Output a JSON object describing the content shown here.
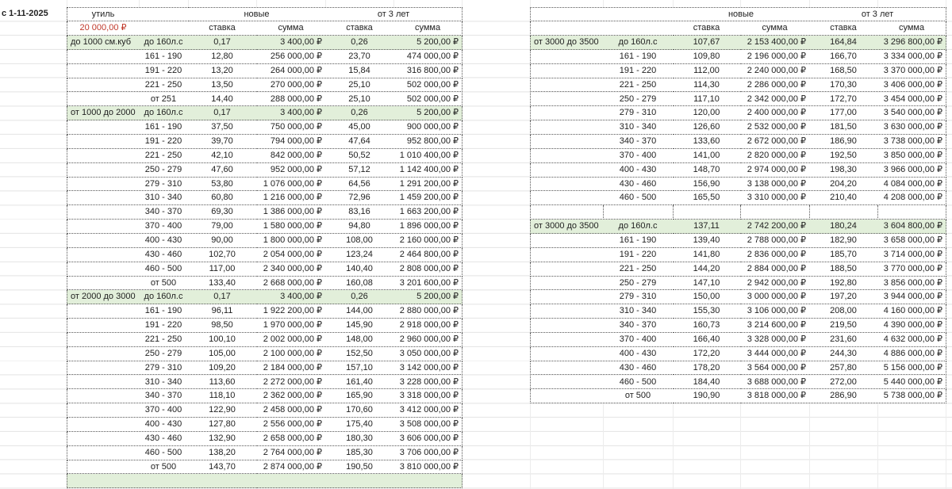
{
  "sheet": {
    "date_label": "с 1-11-2025",
    "colors": {
      "group_row": "#e2efda",
      "util_value": "#c0392b"
    }
  },
  "left": {
    "header": {
      "util_label": "утиль",
      "util_value": "20 000,00 ₽",
      "new_label": "новые",
      "old_label": "от 3 лет",
      "rate": "ставка",
      "sum": "сумма"
    },
    "groups": [
      {
        "label": "до 1000 см.куб",
        "rows": [
          [
            "до 160л.с",
            "0,17",
            "3 400,00 ₽",
            "0,26",
            "5 200,00 ₽"
          ],
          [
            "161 - 190",
            "12,80",
            "256 000,00 ₽",
            "23,70",
            "474 000,00 ₽"
          ],
          [
            "191 - 220",
            "13,20",
            "264 000,00 ₽",
            "15,84",
            "316 800,00 ₽"
          ],
          [
            "221 - 250",
            "13,50",
            "270 000,00 ₽",
            "25,10",
            "502 000,00 ₽"
          ],
          [
            "от 251",
            "14,40",
            "288 000,00 ₽",
            "25,10",
            "502 000,00 ₽"
          ]
        ]
      },
      {
        "label": "от 1000 до 2000",
        "rows": [
          [
            "до 160л.с",
            "0,17",
            "3 400,00 ₽",
            "0,26",
            "5 200,00 ₽"
          ],
          [
            "161 - 190",
            "37,50",
            "750 000,00 ₽",
            "45,00",
            "900 000,00 ₽"
          ],
          [
            "191 - 220",
            "39,70",
            "794 000,00 ₽",
            "47,64",
            "952 800,00 ₽"
          ],
          [
            "221 - 250",
            "42,10",
            "842 000,00 ₽",
            "50,52",
            "1 010 400,00 ₽"
          ],
          [
            "250 - 279",
            "47,60",
            "952 000,00 ₽",
            "57,12",
            "1 142 400,00 ₽"
          ],
          [
            "279 - 310",
            "53,80",
            "1 076 000,00 ₽",
            "64,56",
            "1 291 200,00 ₽"
          ],
          [
            "310 - 340",
            "60,80",
            "1 216 000,00 ₽",
            "72,96",
            "1 459 200,00 ₽"
          ],
          [
            "340 - 370",
            "69,30",
            "1 386 000,00 ₽",
            "83,16",
            "1 663 200,00 ₽"
          ],
          [
            "370 - 400",
            "79,00",
            "1 580 000,00 ₽",
            "94,80",
            "1 896 000,00 ₽"
          ],
          [
            "400 - 430",
            "90,00",
            "1 800 000,00 ₽",
            "108,00",
            "2 160 000,00 ₽"
          ],
          [
            "430 - 460",
            "102,70",
            "2 054 000,00 ₽",
            "123,24",
            "2 464 800,00 ₽"
          ],
          [
            "460 - 500",
            "117,00",
            "2 340 000,00 ₽",
            "140,40",
            "2 808 000,00 ₽"
          ],
          [
            "от 500",
            "133,40",
            "2 668 000,00 ₽",
            "160,08",
            "3 201 600,00 ₽"
          ]
        ]
      },
      {
        "label": "от 2000 до 3000",
        "rows": [
          [
            "до 160л.с",
            "0,17",
            "3 400,00 ₽",
            "0,26",
            "5 200,00 ₽"
          ],
          [
            "161 - 190",
            "96,11",
            "1 922 200,00 ₽",
            "144,00",
            "2 880 000,00 ₽"
          ],
          [
            "191 - 220",
            "98,50",
            "1 970 000,00 ₽",
            "145,90",
            "2 918 000,00 ₽"
          ],
          [
            "221 - 250",
            "100,10",
            "2 002 000,00 ₽",
            "148,00",
            "2 960 000,00 ₽"
          ],
          [
            "250 - 279",
            "105,00",
            "2 100 000,00 ₽",
            "152,50",
            "3 050 000,00 ₽"
          ],
          [
            "279 - 310",
            "109,20",
            "2 184 000,00 ₽",
            "157,10",
            "3 142 000,00 ₽"
          ],
          [
            "310 - 340",
            "113,60",
            "2 272 000,00 ₽",
            "161,40",
            "3 228 000,00 ₽"
          ],
          [
            "340 - 370",
            "118,10",
            "2 362 000,00 ₽",
            "165,90",
            "3 318 000,00 ₽"
          ],
          [
            "370 - 400",
            "122,90",
            "2 458 000,00 ₽",
            "170,60",
            "3 412 000,00 ₽"
          ],
          [
            "400 - 430",
            "127,80",
            "2 556 000,00 ₽",
            "175,40",
            "3 508 000,00 ₽"
          ],
          [
            "430 - 460",
            "132,90",
            "2 658 000,00 ₽",
            "180,30",
            "3 606 000,00 ₽"
          ],
          [
            "460 - 500",
            "138,20",
            "2 764 000,00 ₽",
            "185,30",
            "3 706 000,00 ₽"
          ],
          [
            "от 500",
            "143,70",
            "2 874 000,00 ₽",
            "190,50",
            "3 810 000,00 ₽"
          ]
        ]
      }
    ]
  },
  "right": {
    "header": {
      "new_label": "новые",
      "old_label": "от 3 лет",
      "rate": "ставка",
      "sum": "сумма"
    },
    "groups": [
      {
        "label": "от 3000 до 3500",
        "rows": [
          [
            "до 160л.с",
            "107,67",
            "2 153 400,00 ₽",
            "164,84",
            "3 296 800,00 ₽"
          ],
          [
            "161 - 190",
            "109,80",
            "2 196 000,00 ₽",
            "166,70",
            "3 334 000,00 ₽"
          ],
          [
            "191 - 220",
            "112,00",
            "2 240 000,00 ₽",
            "168,50",
            "3 370 000,00 ₽"
          ],
          [
            "221 - 250",
            "114,30",
            "2 286 000,00 ₽",
            "170,30",
            "3 406 000,00 ₽"
          ],
          [
            "250 - 279",
            "117,10",
            "2 342 000,00 ₽",
            "172,70",
            "3 454 000,00 ₽"
          ],
          [
            "279 - 310",
            "120,00",
            "2 400 000,00 ₽",
            "177,00",
            "3 540 000,00 ₽"
          ],
          [
            "310 - 340",
            "126,60",
            "2 532 000,00 ₽",
            "181,50",
            "3 630 000,00 ₽"
          ],
          [
            "340 - 370",
            "133,60",
            "2 672 000,00 ₽",
            "186,90",
            "3 738 000,00 ₽"
          ],
          [
            "370 - 400",
            "141,00",
            "2 820 000,00 ₽",
            "192,50",
            "3 850 000,00 ₽"
          ],
          [
            "400 - 430",
            "148,70",
            "2 974 000,00 ₽",
            "198,30",
            "3 966 000,00 ₽"
          ],
          [
            "430 - 460",
            "156,90",
            "3 138 000,00 ₽",
            "204,20",
            "4 084 000,00 ₽"
          ],
          [
            "460 - 500",
            "165,50",
            "3 310 000,00 ₽",
            "210,40",
            "4 208 000,00 ₽"
          ]
        ]
      },
      {
        "label": "от 3000 до 3500",
        "rows": [
          [
            "до 160л.с",
            "137,11",
            "2 742 200,00 ₽",
            "180,24",
            "3 604 800,00 ₽"
          ],
          [
            "161 - 190",
            "139,40",
            "2 788 000,00 ₽",
            "182,90",
            "3 658 000,00 ₽"
          ],
          [
            "191 - 220",
            "141,80",
            "2 836 000,00 ₽",
            "185,70",
            "3 714 000,00 ₽"
          ],
          [
            "221 - 250",
            "144,20",
            "2 884 000,00 ₽",
            "188,50",
            "3 770 000,00 ₽"
          ],
          [
            "250 - 279",
            "147,10",
            "2 942 000,00 ₽",
            "192,80",
            "3 856 000,00 ₽"
          ],
          [
            "279 - 310",
            "150,00",
            "3 000 000,00 ₽",
            "197,20",
            "3 944 000,00 ₽"
          ],
          [
            "310 - 340",
            "155,30",
            "3 106 000,00 ₽",
            "208,00",
            "4 160 000,00 ₽"
          ],
          [
            "340 - 370",
            "160,73",
            "3 214 600,00 ₽",
            "219,50",
            "4 390 000,00 ₽"
          ],
          [
            "370 - 400",
            "166,40",
            "3 328 000,00 ₽",
            "231,60",
            "4 632 000,00 ₽"
          ],
          [
            "400 - 430",
            "172,20",
            "3 444 000,00 ₽",
            "244,30",
            "4 886 000,00 ₽"
          ],
          [
            "430 - 460",
            "178,20",
            "3 564 000,00 ₽",
            "257,80",
            "5 156 000,00 ₽"
          ],
          [
            "460 - 500",
            "184,40",
            "3 688 000,00 ₽",
            "272,00",
            "5 440 000,00 ₽"
          ],
          [
            "от 500",
            "190,90",
            "3 818 000,00 ₽",
            "286,90",
            "5 738 000,00 ₽"
          ]
        ]
      }
    ]
  }
}
